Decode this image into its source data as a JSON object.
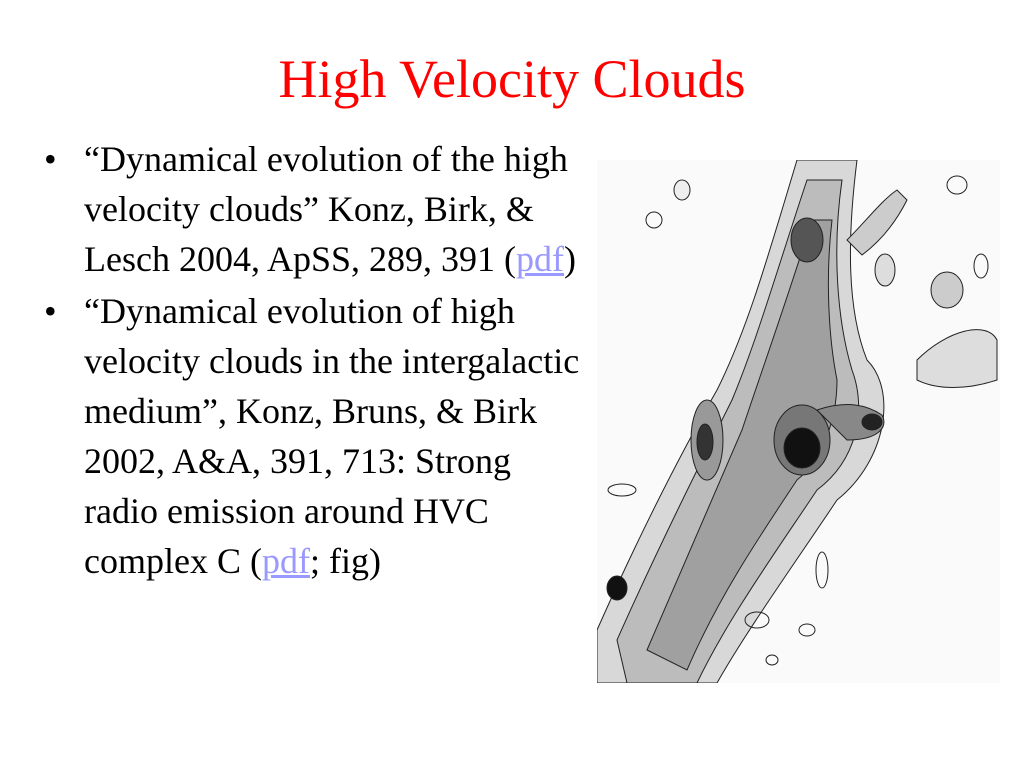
{
  "title": "High Velocity Clouds",
  "bullets": [
    {
      "before": "“Dynamical evolution of the high velocity clouds” Konz, Birk, & Lesch 2004, ApSS, 289, 391 (",
      "link": "pdf",
      "after": ")"
    },
    {
      "before": "“Dynamical evolution of high velocity clouds in the intergalactic medium”, Konz, Bruns, & Birk 2002, A&A, 391, 713: Strong radio emission around HVC complex C (",
      "link": "pdf",
      "after": "; fig)"
    }
  ]
}
